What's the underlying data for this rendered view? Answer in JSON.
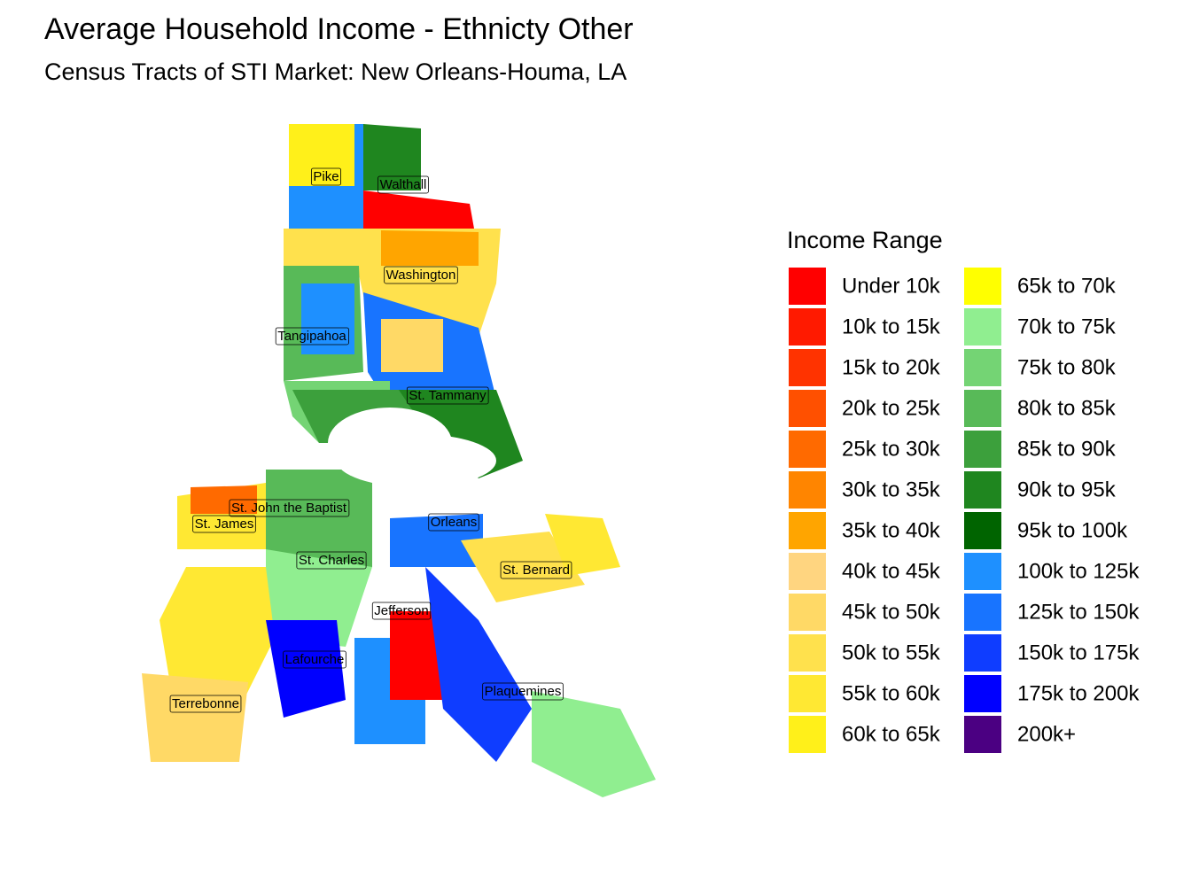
{
  "title": "Average Household Income - Ethnicty Other",
  "subtitle": "Census Tracts of STI Market: New Orleans-Houma, LA",
  "legend": {
    "title": "Income Range",
    "items": [
      {
        "label": "Under 10k",
        "color": "#FF0000"
      },
      {
        "label": "10k to 15k",
        "color": "#FF1A00"
      },
      {
        "label": "15k to 20k",
        "color": "#FF3300"
      },
      {
        "label": "20k to 25k",
        "color": "#FF5000"
      },
      {
        "label": "25k to 30k",
        "color": "#FF6A00"
      },
      {
        "label": "30k to 35k",
        "color": "#FF8500"
      },
      {
        "label": "35k to 40k",
        "color": "#FFA500"
      },
      {
        "label": "40k to 45k",
        "color": "#FFD580"
      },
      {
        "label": "45k to 50k",
        "color": "#FFD966"
      },
      {
        "label": "50k to 55k",
        "color": "#FFE14D"
      },
      {
        "label": "55k to 60k",
        "color": "#FFE833"
      },
      {
        "label": "60k to 65k",
        "color": "#FFF01A"
      },
      {
        "label": "65k to 70k",
        "color": "#FFFF00"
      },
      {
        "label": "70k to 75k",
        "color": "#90EE90"
      },
      {
        "label": "75k to 80k",
        "color": "#74D474"
      },
      {
        "label": "80k to 85k",
        "color": "#58BA58"
      },
      {
        "label": "85k to 90k",
        "color": "#3CA03C"
      },
      {
        "label": "90k to 95k",
        "color": "#1F861F"
      },
      {
        "label": "95k to 100k",
        "color": "#006400"
      },
      {
        "label": "100k to 125k",
        "color": "#1E90FF"
      },
      {
        "label": "125k to 150k",
        "color": "#1874FF"
      },
      {
        "label": "150k to 175k",
        "color": "#0F3DFF"
      },
      {
        "label": "175k to 200k",
        "color": "#0000FF"
      },
      {
        "label": "200k+",
        "color": "#4B0082"
      }
    ]
  },
  "parishes": [
    "Pike",
    "Walthall",
    "Washington",
    "Tangipahoa",
    "St. Tammany",
    "St. John the Baptist",
    "St. James",
    "Orleans",
    "St. Charles",
    "St. Bernard",
    "Jefferson",
    "Lafourche",
    "Plaquemines",
    "Terrebonne"
  ]
}
